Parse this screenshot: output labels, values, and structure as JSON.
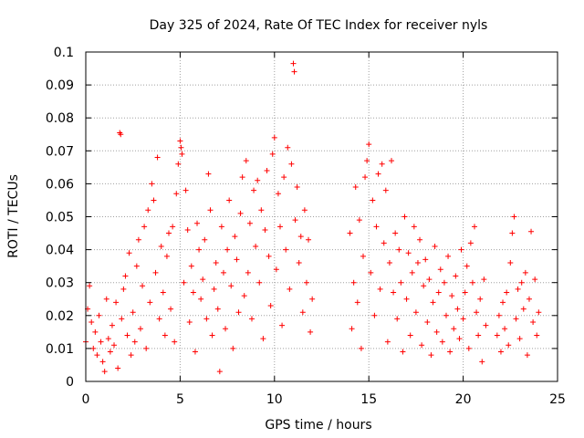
{
  "chart_data": {
    "type": "scatter",
    "title": "Day 325 of 2024, Rate Of TEC Index for receiver nyls",
    "xlabel": "GPS time / hours",
    "ylabel": "ROTI / TECUs",
    "xlim": [
      0,
      25
    ],
    "ylim": [
      0,
      0.1
    ],
    "xticks": [
      0,
      5,
      10,
      15,
      20,
      25
    ],
    "xtick_labels": [
      "0",
      "5",
      "10",
      "15",
      "20",
      "25"
    ],
    "yticks": [
      0,
      0.01,
      0.02,
      0.03,
      0.04,
      0.05,
      0.06,
      0.07,
      0.08,
      0.09,
      0.1
    ],
    "ytick_labels": [
      "0",
      "0.01",
      "0.02",
      "0.03",
      "0.04",
      "0.05",
      "0.06",
      "0.07",
      "0.08",
      "0.09",
      "0.1"
    ],
    "grid": true,
    "marker": "+",
    "color": "#ff0000",
    "series": [
      {
        "values_description_note": "",
        "points": [
          [
            0.0,
            0.012
          ],
          [
            0.1,
            0.022
          ],
          [
            0.2,
            0.029
          ],
          [
            0.3,
            0.018
          ],
          [
            0.4,
            0.01
          ],
          [
            0.5,
            0.015
          ],
          [
            0.6,
            0.008
          ],
          [
            0.7,
            0.02
          ],
          [
            0.8,
            0.012
          ],
          [
            0.9,
            0.006
          ],
          [
            1.0,
            0.003
          ],
          [
            1.1,
            0.025
          ],
          [
            1.2,
            0.013
          ],
          [
            1.3,
            0.009
          ],
          [
            1.4,
            0.017
          ],
          [
            1.5,
            0.011
          ],
          [
            1.6,
            0.024
          ],
          [
            1.7,
            0.004
          ],
          [
            1.8,
            0.0755
          ],
          [
            1.85,
            0.075
          ],
          [
            1.9,
            0.019
          ],
          [
            2.0,
            0.028
          ],
          [
            2.1,
            0.032
          ],
          [
            2.2,
            0.014
          ],
          [
            2.3,
            0.039
          ],
          [
            2.4,
            0.008
          ],
          [
            2.5,
            0.021
          ],
          [
            2.6,
            0.012
          ],
          [
            2.7,
            0.035
          ],
          [
            2.8,
            0.043
          ],
          [
            2.9,
            0.016
          ],
          [
            3.0,
            0.029
          ],
          [
            3.1,
            0.047
          ],
          [
            3.2,
            0.01
          ],
          [
            3.3,
            0.052
          ],
          [
            3.4,
            0.024
          ],
          [
            3.5,
            0.06
          ],
          [
            3.6,
            0.055
          ],
          [
            3.7,
            0.033
          ],
          [
            3.8,
            0.068
          ],
          [
            3.9,
            0.019
          ],
          [
            4.0,
            0.041
          ],
          [
            4.1,
            0.027
          ],
          [
            4.2,
            0.014
          ],
          [
            4.3,
            0.038
          ],
          [
            4.4,
            0.045
          ],
          [
            4.5,
            0.022
          ],
          [
            4.6,
            0.047
          ],
          [
            4.7,
            0.012
          ],
          [
            4.8,
            0.057
          ],
          [
            4.9,
            0.066
          ],
          [
            5.0,
            0.073
          ],
          [
            5.05,
            0.071
          ],
          [
            5.1,
            0.069
          ],
          [
            5.2,
            0.03
          ],
          [
            5.3,
            0.058
          ],
          [
            5.4,
            0.046
          ],
          [
            5.5,
            0.018
          ],
          [
            5.6,
            0.035
          ],
          [
            5.7,
            0.027
          ],
          [
            5.8,
            0.009
          ],
          [
            5.9,
            0.048
          ],
          [
            6.0,
            0.04
          ],
          [
            6.1,
            0.025
          ],
          [
            6.2,
            0.031
          ],
          [
            6.3,
            0.043
          ],
          [
            6.4,
            0.019
          ],
          [
            6.5,
            0.063
          ],
          [
            6.6,
            0.052
          ],
          [
            6.7,
            0.014
          ],
          [
            6.8,
            0.028
          ],
          [
            6.9,
            0.036
          ],
          [
            7.0,
            0.022
          ],
          [
            7.1,
            0.003
          ],
          [
            7.2,
            0.047
          ],
          [
            7.3,
            0.033
          ],
          [
            7.4,
            0.016
          ],
          [
            7.5,
            0.04
          ],
          [
            7.6,
            0.055
          ],
          [
            7.7,
            0.029
          ],
          [
            7.8,
            0.01
          ],
          [
            7.9,
            0.044
          ],
          [
            8.0,
            0.037
          ],
          [
            8.1,
            0.021
          ],
          [
            8.2,
            0.051
          ],
          [
            8.3,
            0.062
          ],
          [
            8.4,
            0.026
          ],
          [
            8.5,
            0.067
          ],
          [
            8.6,
            0.033
          ],
          [
            8.7,
            0.048
          ],
          [
            8.8,
            0.019
          ],
          [
            8.9,
            0.058
          ],
          [
            9.0,
            0.041
          ],
          [
            9.1,
            0.061
          ],
          [
            9.2,
            0.03
          ],
          [
            9.3,
            0.052
          ],
          [
            9.4,
            0.013
          ],
          [
            9.5,
            0.046
          ],
          [
            9.6,
            0.064
          ],
          [
            9.7,
            0.038
          ],
          [
            9.8,
            0.023
          ],
          [
            9.9,
            0.069
          ],
          [
            10.0,
            0.074
          ],
          [
            10.1,
            0.034
          ],
          [
            10.2,
            0.057
          ],
          [
            10.3,
            0.047
          ],
          [
            10.4,
            0.017
          ],
          [
            10.5,
            0.062
          ],
          [
            10.6,
            0.04
          ],
          [
            10.7,
            0.071
          ],
          [
            10.8,
            0.028
          ],
          [
            10.9,
            0.066
          ],
          [
            11.0,
            0.0965
          ],
          [
            11.05,
            0.094
          ],
          [
            11.1,
            0.049
          ],
          [
            11.2,
            0.059
          ],
          [
            11.3,
            0.036
          ],
          [
            11.4,
            0.044
          ],
          [
            11.5,
            0.021
          ],
          [
            11.6,
            0.052
          ],
          [
            11.7,
            0.03
          ],
          [
            11.8,
            0.043
          ],
          [
            11.9,
            0.015
          ],
          [
            12.0,
            0.025
          ],
          [
            14.0,
            0.045
          ],
          [
            14.1,
            0.016
          ],
          [
            14.2,
            0.03
          ],
          [
            14.3,
            0.059
          ],
          [
            14.4,
            0.024
          ],
          [
            14.5,
            0.049
          ],
          [
            14.6,
            0.01
          ],
          [
            14.7,
            0.038
          ],
          [
            14.8,
            0.062
          ],
          [
            14.9,
            0.067
          ],
          [
            15.0,
            0.072
          ],
          [
            15.1,
            0.033
          ],
          [
            15.2,
            0.055
          ],
          [
            15.3,
            0.02
          ],
          [
            15.4,
            0.047
          ],
          [
            15.5,
            0.063
          ],
          [
            15.6,
            0.028
          ],
          [
            15.7,
            0.066
          ],
          [
            15.8,
            0.042
          ],
          [
            15.9,
            0.058
          ],
          [
            16.0,
            0.012
          ],
          [
            16.1,
            0.036
          ],
          [
            16.2,
            0.067
          ],
          [
            16.3,
            0.027
          ],
          [
            16.4,
            0.045
          ],
          [
            16.5,
            0.019
          ],
          [
            16.6,
            0.04
          ],
          [
            16.7,
            0.03
          ],
          [
            16.8,
            0.009
          ],
          [
            16.9,
            0.05
          ],
          [
            17.0,
            0.025
          ],
          [
            17.1,
            0.039
          ],
          [
            17.2,
            0.014
          ],
          [
            17.3,
            0.033
          ],
          [
            17.4,
            0.047
          ],
          [
            17.5,
            0.021
          ],
          [
            17.6,
            0.036
          ],
          [
            17.7,
            0.043
          ],
          [
            17.8,
            0.011
          ],
          [
            17.9,
            0.029
          ],
          [
            18.0,
            0.037
          ],
          [
            18.1,
            0.018
          ],
          [
            18.2,
            0.031
          ],
          [
            18.3,
            0.008
          ],
          [
            18.4,
            0.024
          ],
          [
            18.5,
            0.041
          ],
          [
            18.6,
            0.015
          ],
          [
            18.7,
            0.027
          ],
          [
            18.8,
            0.034
          ],
          [
            18.9,
            0.012
          ],
          [
            19.0,
            0.03
          ],
          [
            19.1,
            0.02
          ],
          [
            19.2,
            0.038
          ],
          [
            19.3,
            0.009
          ],
          [
            19.4,
            0.026
          ],
          [
            19.5,
            0.016
          ],
          [
            19.6,
            0.032
          ],
          [
            19.7,
            0.022
          ],
          [
            19.8,
            0.013
          ],
          [
            19.9,
            0.04
          ],
          [
            20.0,
            0.019
          ],
          [
            20.1,
            0.027
          ],
          [
            20.2,
            0.035
          ],
          [
            20.3,
            0.01
          ],
          [
            20.4,
            0.042
          ],
          [
            20.5,
            0.03
          ],
          [
            20.6,
            0.047
          ],
          [
            20.7,
            0.021
          ],
          [
            20.8,
            0.014
          ],
          [
            20.9,
            0.025
          ],
          [
            21.0,
            0.006
          ],
          [
            21.1,
            0.031
          ],
          [
            21.2,
            0.017
          ],
          [
            21.8,
            0.014
          ],
          [
            21.9,
            0.02
          ],
          [
            22.0,
            0.009
          ],
          [
            22.1,
            0.024
          ],
          [
            22.2,
            0.016
          ],
          [
            22.3,
            0.027
          ],
          [
            22.4,
            0.011
          ],
          [
            22.5,
            0.036
          ],
          [
            22.6,
            0.045
          ],
          [
            22.7,
            0.05
          ],
          [
            22.8,
            0.019
          ],
          [
            22.9,
            0.028
          ],
          [
            23.0,
            0.013
          ],
          [
            23.1,
            0.03
          ],
          [
            23.2,
            0.022
          ],
          [
            23.3,
            0.033
          ],
          [
            23.4,
            0.008
          ],
          [
            23.5,
            0.025
          ],
          [
            23.6,
            0.0455
          ],
          [
            23.7,
            0.018
          ],
          [
            23.8,
            0.031
          ],
          [
            23.9,
            0.014
          ],
          [
            24.0,
            0.021
          ]
        ]
      }
    ]
  }
}
